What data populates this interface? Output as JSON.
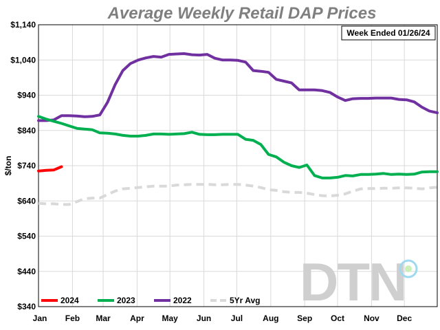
{
  "chart_data": {
    "type": "line",
    "title": "Average Weekly Retail DAP Prices",
    "annotation": "Week Ended 01/26/24",
    "ylabel": "$/ton",
    "xlabel": "",
    "ylim": [
      340,
      1140
    ],
    "yticks": [
      340,
      440,
      540,
      640,
      740,
      840,
      940,
      1040,
      1140
    ],
    "ytick_labels": [
      "$340",
      "$440",
      "$540",
      "$640",
      "$740",
      "$840",
      "$940",
      "$1,040",
      "$1,140"
    ],
    "x_unit": "week of year (0-52)",
    "xlim": [
      0,
      52
    ],
    "months": [
      {
        "label": "Jan",
        "x": 0
      },
      {
        "label": "Feb",
        "x": 4.43
      },
      {
        "label": "Mar",
        "x": 8.43
      },
      {
        "label": "Apr",
        "x": 12.86
      },
      {
        "label": "May",
        "x": 17.14
      },
      {
        "label": "Jun",
        "x": 21.57
      },
      {
        "label": "Jul",
        "x": 25.86
      },
      {
        "label": "Aug",
        "x": 30.29
      },
      {
        "label": "Sep",
        "x": 34.71
      },
      {
        "label": "Oct",
        "x": 39
      },
      {
        "label": "Nov",
        "x": 43.43
      },
      {
        "label": "Dec",
        "x": 47.71
      }
    ],
    "grid": true,
    "legend_position": "bottom-left",
    "logo_text": "DTN",
    "series": [
      {
        "name": "2024",
        "color": "#ff0000",
        "dash": false,
        "x": [
          0,
          1,
          2,
          3
        ],
        "y": [
          725,
          727,
          728,
          737
        ]
      },
      {
        "name": "2023",
        "color": "#00b050",
        "dash": false,
        "x": [
          0,
          1,
          2,
          3,
          4,
          5,
          6,
          7,
          8,
          9,
          10,
          11,
          12,
          13,
          14,
          15,
          16,
          17,
          18,
          19,
          20,
          21,
          22,
          23,
          24,
          25,
          26,
          27,
          28,
          29,
          30,
          31,
          32,
          33,
          34,
          35,
          36,
          37,
          38,
          39,
          40,
          41,
          42,
          43,
          44,
          45,
          46,
          47,
          48,
          49,
          50,
          51,
          52
        ],
        "y": [
          880,
          872,
          866,
          860,
          853,
          846,
          844,
          842,
          833,
          832,
          830,
          826,
          824,
          824,
          826,
          830,
          830,
          829,
          830,
          831,
          835,
          829,
          828,
          828,
          829,
          829,
          829,
          815,
          812,
          800,
          772,
          765,
          750,
          740,
          735,
          742,
          712,
          705,
          705,
          707,
          712,
          711,
          715,
          715,
          716,
          718,
          715,
          716,
          715,
          716,
          722,
          723,
          723
        ]
      },
      {
        "name": "2022",
        "color": "#7030a0",
        "dash": false,
        "x": [
          0,
          1,
          2,
          3,
          4,
          5,
          6,
          7,
          8,
          9,
          10,
          11,
          12,
          13,
          14,
          15,
          16,
          17,
          18,
          19,
          20,
          21,
          22,
          23,
          24,
          25,
          26,
          27,
          28,
          29,
          30,
          31,
          32,
          33,
          34,
          35,
          36,
          37,
          38,
          39,
          40,
          41,
          42,
          43,
          44,
          45,
          46,
          47,
          48,
          49,
          50,
          51,
          52
        ],
        "y": [
          868,
          868,
          870,
          882,
          882,
          881,
          879,
          880,
          884,
          920,
          970,
          1010,
          1030,
          1040,
          1046,
          1050,
          1048,
          1056,
          1057,
          1058,
          1055,
          1054,
          1056,
          1045,
          1040,
          1040,
          1039,
          1034,
          1010,
          1008,
          1005,
          985,
          980,
          975,
          955,
          955,
          955,
          953,
          948,
          935,
          925,
          930,
          931,
          931,
          932,
          932,
          932,
          928,
          927,
          921,
          906,
          895,
          890
        ]
      },
      {
        "name": "5Yr Avg",
        "color": "#d9d9d9",
        "dash": true,
        "x": [
          0,
          1,
          2,
          3,
          4,
          5,
          6,
          7,
          8,
          9,
          10,
          11,
          12,
          13,
          14,
          15,
          16,
          17,
          18,
          19,
          20,
          21,
          22,
          23,
          24,
          25,
          26,
          27,
          28,
          29,
          30,
          31,
          32,
          33,
          34,
          35,
          36,
          37,
          38,
          39,
          40,
          41,
          42,
          43,
          44,
          45,
          46,
          47,
          48,
          49,
          50,
          51,
          52
        ],
        "y": [
          633,
          632,
          632,
          630,
          630,
          638,
          646,
          648,
          648,
          658,
          668,
          674,
          676,
          678,
          680,
          682,
          682,
          682,
          685,
          686,
          687,
          687,
          687,
          686,
          686,
          687,
          687,
          685,
          682,
          678,
          672,
          670,
          666,
          664,
          664,
          662,
          658,
          655,
          654,
          656,
          660,
          668,
          674,
          675,
          675,
          676,
          676,
          677,
          677,
          676,
          674,
          677,
          679
        ]
      }
    ]
  }
}
